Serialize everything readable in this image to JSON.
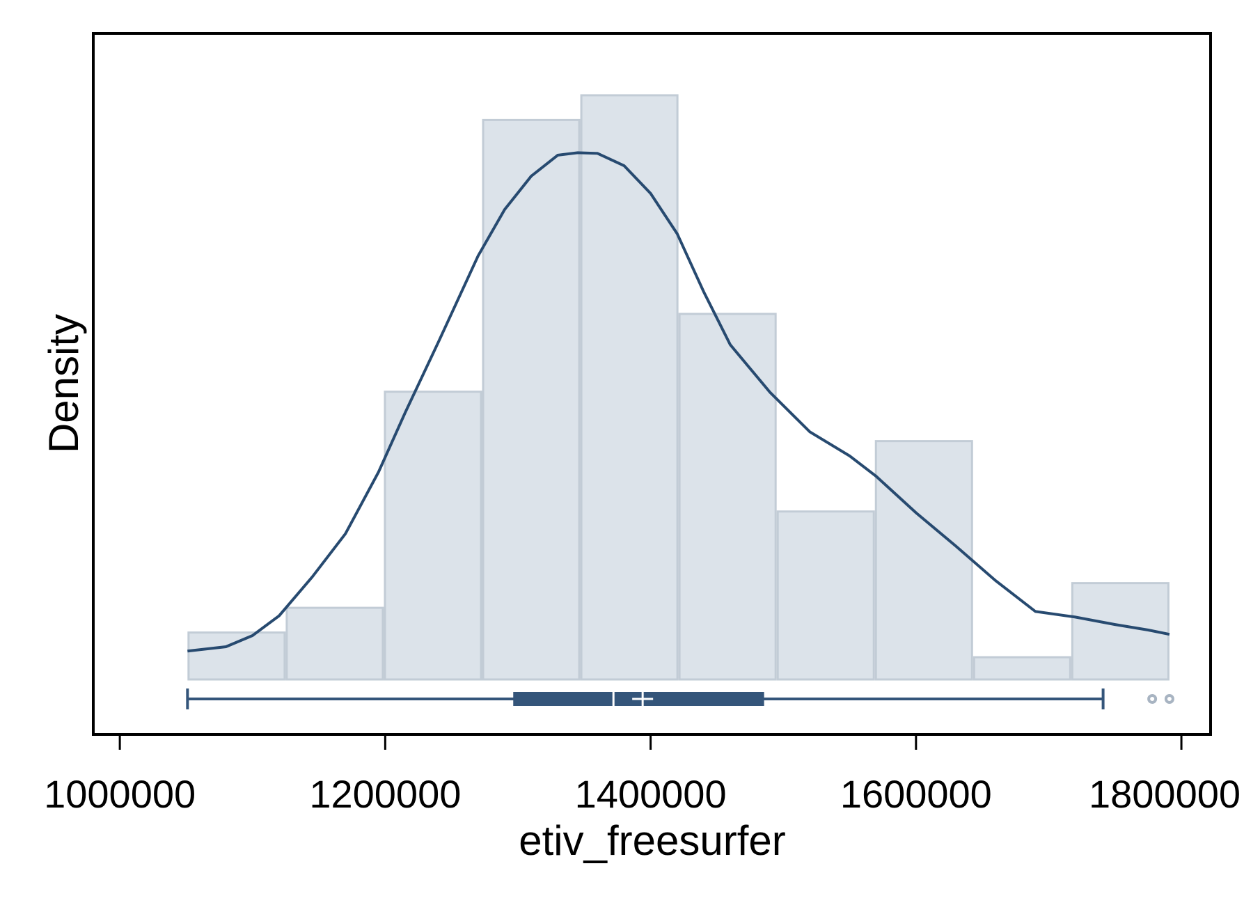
{
  "chart_data": {
    "type": "histogram",
    "xlabel": "etiv_freesurfer",
    "ylabel": "Density",
    "xlim": [
      980000,
      1822000
    ],
    "ylim": [
      0,
      1.0
    ],
    "x_ticks": [
      1000000,
      1200000,
      1400000,
      1600000,
      1800000
    ],
    "x_tick_labels": [
      "1000000",
      "1200000",
      "1400000",
      "1600000",
      "1800000"
    ],
    "bins": {
      "edges": [
        1051000,
        1125000,
        1199000,
        1273000,
        1347000,
        1421000,
        1495000,
        1569000,
        1643000,
        1717000,
        1791000
      ],
      "heights": [
        0.076,
        0.116,
        0.466,
        0.906,
        0.946,
        0.592,
        0.272,
        0.386,
        0.036,
        0.156
      ]
    },
    "density_curve": {
      "x": [
        1051000,
        1080000,
        1100000,
        1120000,
        1145000,
        1170000,
        1195000,
        1215000,
        1240000,
        1270000,
        1290000,
        1310000,
        1330000,
        1345000,
        1360000,
        1380000,
        1400000,
        1420000,
        1440000,
        1460000,
        1490000,
        1520000,
        1550000,
        1570000,
        1600000,
        1630000,
        1660000,
        1690000,
        1720000,
        1750000,
        1775000,
        1791000
      ],
      "y": [
        0.046,
        0.053,
        0.071,
        0.103,
        0.166,
        0.236,
        0.336,
        0.432,
        0.546,
        0.686,
        0.761,
        0.815,
        0.849,
        0.853,
        0.852,
        0.832,
        0.787,
        0.722,
        0.628,
        0.542,
        0.465,
        0.401,
        0.362,
        0.329,
        0.27,
        0.216,
        0.16,
        0.11,
        0.101,
        0.089,
        0.08,
        0.073
      ]
    },
    "boxplot": {
      "whisker_low": 1051000,
      "q1": 1297000,
      "median": 1372000,
      "mean": 1394000,
      "q3": 1485000,
      "whisker_high": 1741000,
      "outliers": [
        1778000,
        1791000
      ]
    },
    "colors": {
      "bar_fill": "#dce3ea",
      "bar_edge": "#c2ccd6",
      "curve": "#274a70",
      "box": "#34557a",
      "outlier": "#a8b4c2",
      "frame": "#000000"
    },
    "grid": false,
    "legend": "none"
  }
}
